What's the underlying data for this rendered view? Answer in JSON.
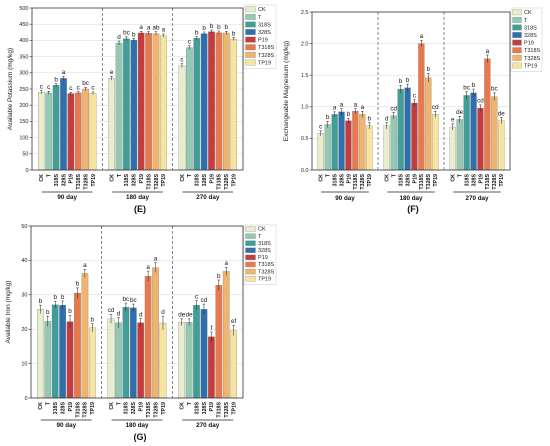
{
  "palette": {
    "CK": "#e6eecb",
    "T": "#93c9b3",
    "318S": "#3f9e97",
    "328S": "#2e70ad",
    "P19": "#c53c3f",
    "T318S": "#e7794d",
    "T328S": "#f1b46c",
    "TP19": "#f7e49f"
  },
  "chart_data": [
    {
      "id": "E",
      "type": "bar",
      "panel_label": "(E)",
      "ylabel": "Available Potassium (mg/kg)",
      "ylim": [
        0,
        500
      ],
      "yticks": [
        0,
        50,
        100,
        150,
        200,
        250,
        300,
        350,
        400,
        450,
        500
      ],
      "series_names": [
        "CK",
        "T",
        "318S",
        "328S",
        "P19",
        "T318S",
        "T328S",
        "TP19"
      ],
      "groups": [
        {
          "label": "90 day",
          "values": [
            240,
            238,
            262,
            283,
            236,
            238,
            250,
            237
          ],
          "errors": [
            5,
            5,
            5,
            6,
            4,
            4,
            5,
            4
          ],
          "letters": [
            "c",
            "c",
            "b",
            "a",
            "c",
            "c",
            "bc",
            "c"
          ]
        },
        {
          "label": "180 day",
          "values": [
            283,
            392,
            405,
            401,
            423,
            422,
            421,
            415
          ],
          "errors": [
            6,
            6,
            6,
            5,
            5,
            5,
            6,
            5
          ],
          "letters": [
            "e",
            "d",
            "bc",
            "b",
            "a",
            "a",
            "ab",
            "a"
          ]
        },
        {
          "label": "270 day",
          "values": [
            322,
            378,
            407,
            421,
            427,
            424,
            423,
            404
          ],
          "errors": [
            6,
            6,
            5,
            5,
            5,
            5,
            5,
            5
          ],
          "letters": [
            "c",
            "c",
            "b",
            "b",
            "b",
            "b",
            "b",
            "b"
          ]
        }
      ]
    },
    {
      "id": "F",
      "type": "bar",
      "panel_label": "(F)",
      "ylabel": "Exchangeable Magnesium (mg/kg)",
      "ylim": [
        0,
        2.5
      ],
      "yticks": [
        0.0,
        0.5,
        1.0,
        1.5,
        2.0,
        2.5
      ],
      "series_names": [
        "CK",
        "T",
        "318S",
        "328S",
        "P19",
        "T318S",
        "T328S",
        "TP19"
      ],
      "groups": [
        {
          "label": "90 day",
          "values": [
            0.58,
            0.72,
            0.88,
            0.92,
            0.78,
            0.93,
            0.88,
            0.7
          ],
          "errors": [
            0.04,
            0.05,
            0.04,
            0.05,
            0.04,
            0.04,
            0.05,
            0.05
          ],
          "letters": [
            "c",
            "b",
            "a",
            "a",
            "b",
            "a",
            "a",
            "b"
          ]
        },
        {
          "label": "180 day",
          "values": [
            0.7,
            0.86,
            1.28,
            1.3,
            1.06,
            2.0,
            1.46,
            0.88
          ],
          "errors": [
            0.05,
            0.05,
            0.06,
            0.06,
            0.05,
            0.05,
            0.07,
            0.05
          ],
          "letters": [
            "d",
            "cd",
            "b",
            "b",
            "c",
            "a",
            "b",
            "cd"
          ]
        },
        {
          "label": "270 day",
          "values": [
            0.68,
            0.8,
            1.18,
            1.22,
            0.98,
            1.76,
            1.16,
            0.78
          ],
          "errors": [
            0.05,
            0.05,
            0.06,
            0.06,
            0.05,
            0.06,
            0.06,
            0.05
          ],
          "letters": [
            "e",
            "de",
            "bc",
            "b",
            "cd",
            "a",
            "bc",
            "de"
          ]
        }
      ]
    },
    {
      "id": "G",
      "type": "bar",
      "panel_label": "(G)",
      "ylabel": "Available Iron (mg/kg)",
      "ylim": [
        0,
        50
      ],
      "yticks": [
        0,
        10,
        20,
        30,
        40,
        50
      ],
      "series_names": [
        "CK",
        "T",
        "318S",
        "328S",
        "P19",
        "T318S",
        "T328S",
        "TP19"
      ],
      "groups": [
        {
          "label": "90 day",
          "values": [
            25.8,
            22.3,
            27.1,
            27.0,
            22.2,
            30.5,
            36.2,
            20.4
          ],
          "errors": [
            1.2,
            1.5,
            1.0,
            1.2,
            1.8,
            1.5,
            1.2,
            1.2
          ],
          "letters": [
            "b",
            "b",
            "b",
            "b",
            "b",
            "b",
            "a",
            "b"
          ]
        },
        {
          "label": "180 day",
          "values": [
            23.0,
            21.9,
            26.4,
            26.2,
            21.9,
            35.4,
            37.9,
            21.8
          ],
          "errors": [
            1.3,
            1.5,
            1.2,
            1.1,
            1.2,
            1.5,
            1.4,
            2.0
          ],
          "letters": [
            "cd",
            "d",
            "bc",
            "bc",
            "d",
            "a",
            "a",
            "d"
          ]
        },
        {
          "label": "270 day",
          "values": [
            22.0,
            22.0,
            27.0,
            25.8,
            17.8,
            32.8,
            36.8,
            19.6
          ],
          "errors": [
            1.0,
            1.0,
            1.3,
            1.5,
            1.4,
            1.5,
            1.2,
            1.5
          ],
          "letters": [
            "de",
            "de",
            "c",
            "cd",
            "f",
            "b",
            "a",
            "ef"
          ]
        }
      ]
    }
  ]
}
